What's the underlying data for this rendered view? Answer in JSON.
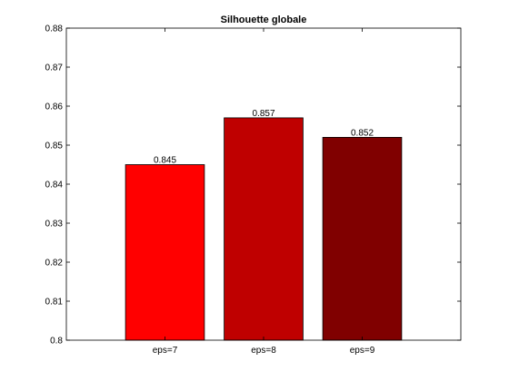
{
  "chart_data": {
    "type": "bar",
    "title": "Silhouette globale",
    "xlabel": "",
    "ylabel": "",
    "categories": [
      "eps=7",
      "eps=8",
      "eps=9"
    ],
    "values": [
      0.845,
      0.857,
      0.852
    ],
    "data_labels": [
      "0.845",
      "0.857",
      "0.852"
    ],
    "colors": [
      "#ff0000",
      "#bf0000",
      "#800000"
    ],
    "ylim": [
      0.8,
      0.88
    ],
    "yticks": [
      0.8,
      0.81,
      0.82,
      0.83,
      0.84,
      0.85,
      0.86,
      0.87,
      0.88
    ],
    "ytick_labels": [
      "0.8",
      "0.81",
      "0.82",
      "0.83",
      "0.84",
      "0.85",
      "0.86",
      "0.87",
      "0.88"
    ],
    "grid": false,
    "legend": "none"
  }
}
